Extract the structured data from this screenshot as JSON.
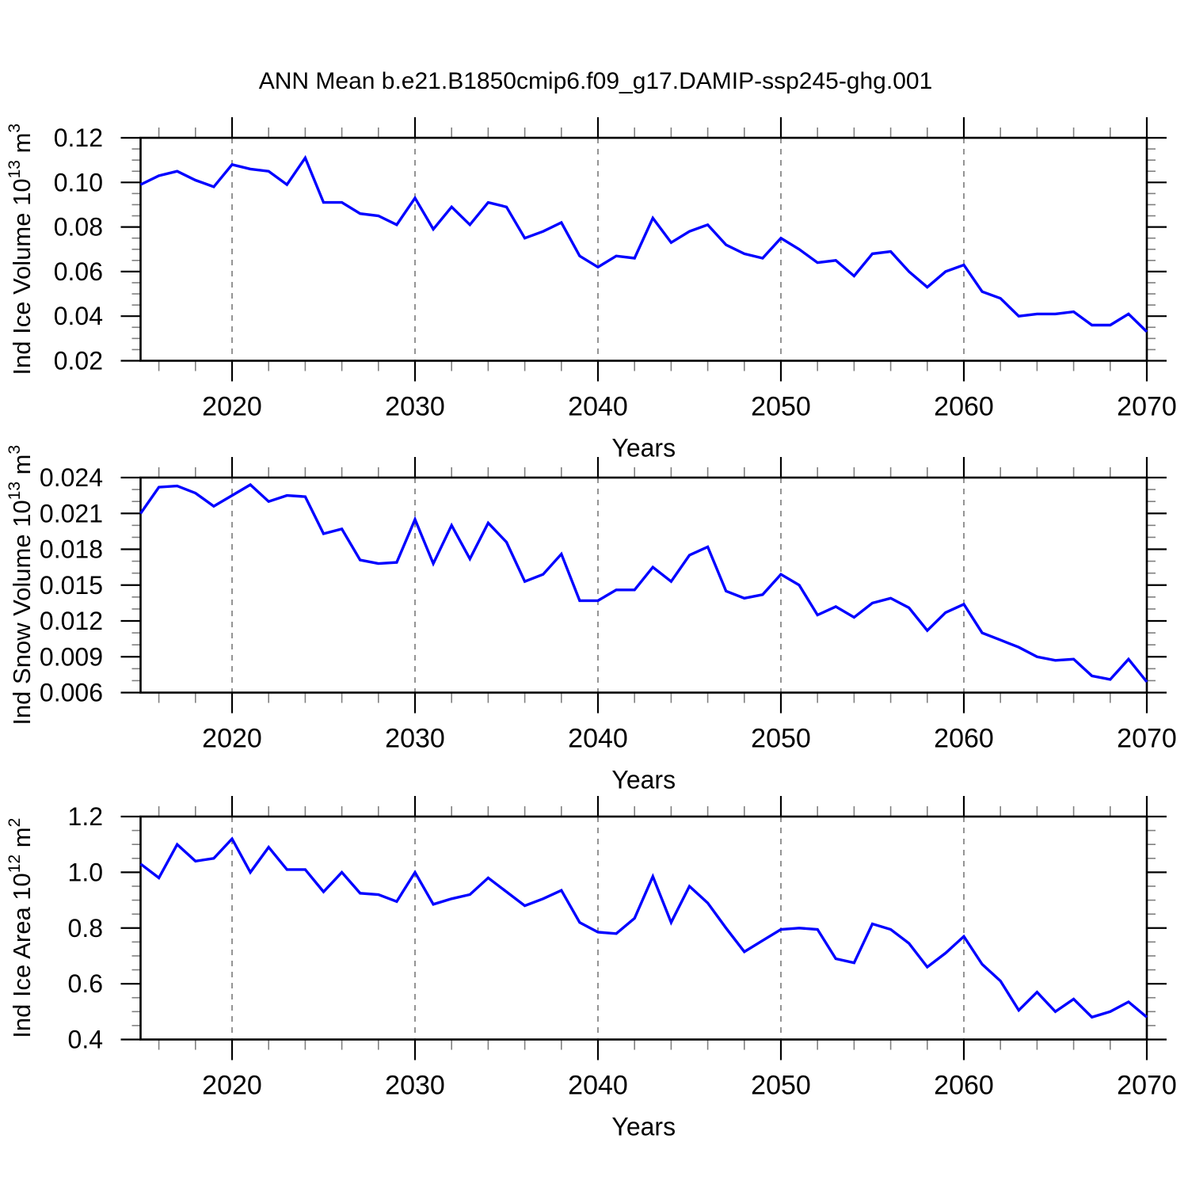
{
  "title": "ANN Mean b.e21.B1850cmip6.f09_g17.DAMIP-ssp245-ghg.001",
  "line_color": "#0000ff",
  "grid_color": "#7a7a7a",
  "frame_color": "#000000",
  "minor_tick_color": "#808080",
  "chart_data": {
    "type": "line",
    "title": "ANN Mean b.e21.B1850cmip6.f09_g17.DAMIP-ssp245-ghg.001",
    "x_label": "Years",
    "x_range": [
      2015,
      2070
    ],
    "x_step_years": 1,
    "x_major_ticks": [
      2020,
      2030,
      2040,
      2050,
      2060,
      2070
    ],
    "x_minor_step": 2,
    "x_gridlines": [
      2020,
      2030,
      2040,
      2050,
      2060
    ],
    "grid_style": "dashed-vertical",
    "legend": "none",
    "years": [
      2015,
      2016,
      2017,
      2018,
      2019,
      2020,
      2021,
      2022,
      2023,
      2024,
      2025,
      2026,
      2027,
      2028,
      2029,
      2030,
      2031,
      2032,
      2033,
      2034,
      2035,
      2036,
      2037,
      2038,
      2039,
      2040,
      2041,
      2042,
      2043,
      2044,
      2045,
      2046,
      2047,
      2048,
      2049,
      2050,
      2051,
      2052,
      2053,
      2054,
      2055,
      2056,
      2057,
      2058,
      2059,
      2060,
      2061,
      2062,
      2063,
      2064,
      2065,
      2066,
      2067,
      2068,
      2069,
      2070
    ],
    "panels": [
      {
        "name": "ice-volume",
        "ylabel_text": "Ind Ice Volume 10^13 m^3",
        "ylabel_segments": [
          {
            "t": "Ind Ice Volume 10"
          },
          {
            "t": "13",
            "sup": true
          },
          {
            "t": " m"
          },
          {
            "t": "3",
            "sup": true
          }
        ],
        "ylim": [
          0.02,
          0.12
        ],
        "y_major_step": 0.02,
        "y_minor_divisions": 4,
        "ytick_labels": [
          "0.02",
          "0.04",
          "0.06",
          "0.08",
          "0.10",
          "0.12"
        ],
        "ytick_values": [
          0.02,
          0.04,
          0.06,
          0.08,
          0.1,
          0.12
        ],
        "values": [
          0.099,
          0.103,
          0.105,
          0.101,
          0.098,
          0.108,
          0.106,
          0.105,
          0.099,
          0.111,
          0.091,
          0.091,
          0.086,
          0.085,
          0.081,
          0.093,
          0.079,
          0.089,
          0.081,
          0.091,
          0.089,
          0.075,
          0.078,
          0.082,
          0.067,
          0.062,
          0.067,
          0.066,
          0.084,
          0.073,
          0.078,
          0.081,
          0.072,
          0.068,
          0.066,
          0.075,
          0.07,
          0.064,
          0.065,
          0.058,
          0.068,
          0.069,
          0.06,
          0.053,
          0.06,
          0.063,
          0.051,
          0.048,
          0.04,
          0.041,
          0.041,
          0.042,
          0.036,
          0.036,
          0.041,
          0.033
        ]
      },
      {
        "name": "snow-volume",
        "ylabel_text": "Ind Snow Volume 10^13 m^3",
        "ylabel_segments": [
          {
            "t": "Ind Snow Volume 10"
          },
          {
            "t": "13",
            "sup": true
          },
          {
            "t": " m"
          },
          {
            "t": "3",
            "sup": true
          }
        ],
        "ylim": [
          0.006,
          0.024
        ],
        "y_major_step": 0.003,
        "y_minor_divisions": 3,
        "ytick_labels": [
          "0.006",
          "0.009",
          "0.012",
          "0.015",
          "0.018",
          "0.021",
          "0.024"
        ],
        "ytick_values": [
          0.006,
          0.009,
          0.012,
          0.015,
          0.018,
          0.021,
          0.024
        ],
        "values": [
          0.021,
          0.0232,
          0.0233,
          0.0227,
          0.0216,
          0.0225,
          0.0234,
          0.022,
          0.0225,
          0.0224,
          0.0193,
          0.0197,
          0.0171,
          0.0168,
          0.0169,
          0.0205,
          0.0168,
          0.02,
          0.0172,
          0.0202,
          0.0186,
          0.0153,
          0.0159,
          0.0176,
          0.0137,
          0.0137,
          0.0146,
          0.0146,
          0.0165,
          0.0153,
          0.0175,
          0.0182,
          0.0145,
          0.0139,
          0.0142,
          0.0159,
          0.015,
          0.0125,
          0.0132,
          0.0123,
          0.0135,
          0.0139,
          0.0131,
          0.0112,
          0.0127,
          0.0134,
          0.011,
          0.0104,
          0.0098,
          0.009,
          0.0087,
          0.0088,
          0.0074,
          0.0071,
          0.0088,
          0.0069
        ]
      },
      {
        "name": "ice-area",
        "ylabel_text": "Ind Ice Area 10^12 m^2",
        "ylabel_segments": [
          {
            "t": "Ind Ice Area 10"
          },
          {
            "t": "12",
            "sup": true
          },
          {
            "t": " m"
          },
          {
            "t": "2",
            "sup": true
          }
        ],
        "ylim": [
          0.4,
          1.2
        ],
        "y_major_step": 0.2,
        "y_minor_divisions": 4,
        "ytick_labels": [
          "0.4",
          "0.6",
          "0.8",
          "1.0",
          "1.2"
        ],
        "ytick_values": [
          0.4,
          0.6,
          0.8,
          1.0,
          1.2
        ],
        "values": [
          1.03,
          0.98,
          1.1,
          1.04,
          1.05,
          1.12,
          1.0,
          1.09,
          1.01,
          1.01,
          0.93,
          1.0,
          0.925,
          0.92,
          0.895,
          1.0,
          0.885,
          0.905,
          0.92,
          0.98,
          0.93,
          0.88,
          0.905,
          0.935,
          0.82,
          0.785,
          0.78,
          0.835,
          0.985,
          0.82,
          0.95,
          0.89,
          0.8,
          0.715,
          0.755,
          0.795,
          0.8,
          0.795,
          0.69,
          0.675,
          0.815,
          0.795,
          0.745,
          0.66,
          0.71,
          0.77,
          0.67,
          0.61,
          0.505,
          0.57,
          0.5,
          0.545,
          0.48,
          0.5,
          0.535,
          0.48
        ]
      }
    ]
  }
}
